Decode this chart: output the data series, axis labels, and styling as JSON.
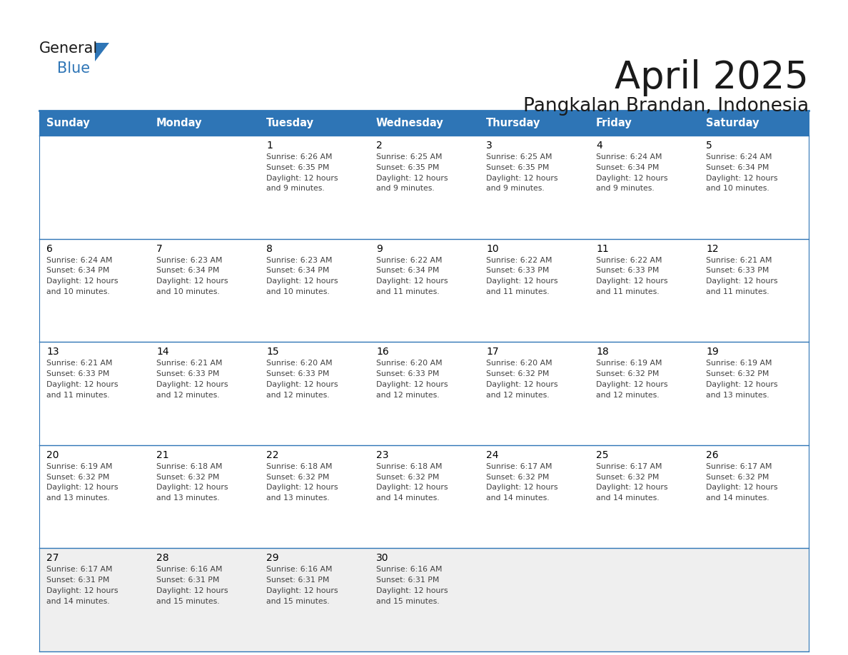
{
  "title": "April 2025",
  "subtitle": "Pangkalan Brandan, Indonesia",
  "header_bg_color": "#2E75B6",
  "header_text_color": "#FFFFFF",
  "row_bg_colors": [
    "#FFFFFF",
    "#FFFFFF",
    "#FFFFFF",
    "#FFFFFF",
    "#EFEFEF"
  ],
  "grid_line_color": "#2E75B6",
  "day_number_color": "#000000",
  "cell_text_color": "#404040",
  "title_color": "#1A1A1A",
  "subtitle_color": "#1A1A1A",
  "logo_general_color": "#1A1A1A",
  "logo_blue_color": "#2E75B6",
  "logo_triangle_color": "#2E75B6",
  "days_of_week": [
    "Sunday",
    "Monday",
    "Tuesday",
    "Wednesday",
    "Thursday",
    "Friday",
    "Saturday"
  ],
  "calendar_data": [
    [
      {
        "day": "",
        "sunrise": "",
        "sunset": "",
        "daylight": ""
      },
      {
        "day": "",
        "sunrise": "",
        "sunset": "",
        "daylight": ""
      },
      {
        "day": "1",
        "sunrise": "6:26 AM",
        "sunset": "6:35 PM",
        "daylight": "12 hours and 9 minutes."
      },
      {
        "day": "2",
        "sunrise": "6:25 AM",
        "sunset": "6:35 PM",
        "daylight": "12 hours and 9 minutes."
      },
      {
        "day": "3",
        "sunrise": "6:25 AM",
        "sunset": "6:35 PM",
        "daylight": "12 hours and 9 minutes."
      },
      {
        "day": "4",
        "sunrise": "6:24 AM",
        "sunset": "6:34 PM",
        "daylight": "12 hours and 9 minutes."
      },
      {
        "day": "5",
        "sunrise": "6:24 AM",
        "sunset": "6:34 PM",
        "daylight": "12 hours and 10 minutes."
      }
    ],
    [
      {
        "day": "6",
        "sunrise": "6:24 AM",
        "sunset": "6:34 PM",
        "daylight": "12 hours and 10 minutes."
      },
      {
        "day": "7",
        "sunrise": "6:23 AM",
        "sunset": "6:34 PM",
        "daylight": "12 hours and 10 minutes."
      },
      {
        "day": "8",
        "sunrise": "6:23 AM",
        "sunset": "6:34 PM",
        "daylight": "12 hours and 10 minutes."
      },
      {
        "day": "9",
        "sunrise": "6:22 AM",
        "sunset": "6:34 PM",
        "daylight": "12 hours and 11 minutes."
      },
      {
        "day": "10",
        "sunrise": "6:22 AM",
        "sunset": "6:33 PM",
        "daylight": "12 hours and 11 minutes."
      },
      {
        "day": "11",
        "sunrise": "6:22 AM",
        "sunset": "6:33 PM",
        "daylight": "12 hours and 11 minutes."
      },
      {
        "day": "12",
        "sunrise": "6:21 AM",
        "sunset": "6:33 PM",
        "daylight": "12 hours and 11 minutes."
      }
    ],
    [
      {
        "day": "13",
        "sunrise": "6:21 AM",
        "sunset": "6:33 PM",
        "daylight": "12 hours and 11 minutes."
      },
      {
        "day": "14",
        "sunrise": "6:21 AM",
        "sunset": "6:33 PM",
        "daylight": "12 hours and 12 minutes."
      },
      {
        "day": "15",
        "sunrise": "6:20 AM",
        "sunset": "6:33 PM",
        "daylight": "12 hours and 12 minutes."
      },
      {
        "day": "16",
        "sunrise": "6:20 AM",
        "sunset": "6:33 PM",
        "daylight": "12 hours and 12 minutes."
      },
      {
        "day": "17",
        "sunrise": "6:20 AM",
        "sunset": "6:32 PM",
        "daylight": "12 hours and 12 minutes."
      },
      {
        "day": "18",
        "sunrise": "6:19 AM",
        "sunset": "6:32 PM",
        "daylight": "12 hours and 12 minutes."
      },
      {
        "day": "19",
        "sunrise": "6:19 AM",
        "sunset": "6:32 PM",
        "daylight": "12 hours and 13 minutes."
      }
    ],
    [
      {
        "day": "20",
        "sunrise": "6:19 AM",
        "sunset": "6:32 PM",
        "daylight": "12 hours and 13 minutes."
      },
      {
        "day": "21",
        "sunrise": "6:18 AM",
        "sunset": "6:32 PM",
        "daylight": "12 hours and 13 minutes."
      },
      {
        "day": "22",
        "sunrise": "6:18 AM",
        "sunset": "6:32 PM",
        "daylight": "12 hours and 13 minutes."
      },
      {
        "day": "23",
        "sunrise": "6:18 AM",
        "sunset": "6:32 PM",
        "daylight": "12 hours and 14 minutes."
      },
      {
        "day": "24",
        "sunrise": "6:17 AM",
        "sunset": "6:32 PM",
        "daylight": "12 hours and 14 minutes."
      },
      {
        "day": "25",
        "sunrise": "6:17 AM",
        "sunset": "6:32 PM",
        "daylight": "12 hours and 14 minutes."
      },
      {
        "day": "26",
        "sunrise": "6:17 AM",
        "sunset": "6:32 PM",
        "daylight": "12 hours and 14 minutes."
      }
    ],
    [
      {
        "day": "27",
        "sunrise": "6:17 AM",
        "sunset": "6:31 PM",
        "daylight": "12 hours and 14 minutes."
      },
      {
        "day": "28",
        "sunrise": "6:16 AM",
        "sunset": "6:31 PM",
        "daylight": "12 hours and 15 minutes."
      },
      {
        "day": "29",
        "sunrise": "6:16 AM",
        "sunset": "6:31 PM",
        "daylight": "12 hours and 15 minutes."
      },
      {
        "day": "30",
        "sunrise": "6:16 AM",
        "sunset": "6:31 PM",
        "daylight": "12 hours and 15 minutes."
      },
      {
        "day": "",
        "sunrise": "",
        "sunset": "",
        "daylight": ""
      },
      {
        "day": "",
        "sunrise": "",
        "sunset": "",
        "daylight": ""
      },
      {
        "day": "",
        "sunrise": "",
        "sunset": "",
        "daylight": ""
      }
    ]
  ]
}
